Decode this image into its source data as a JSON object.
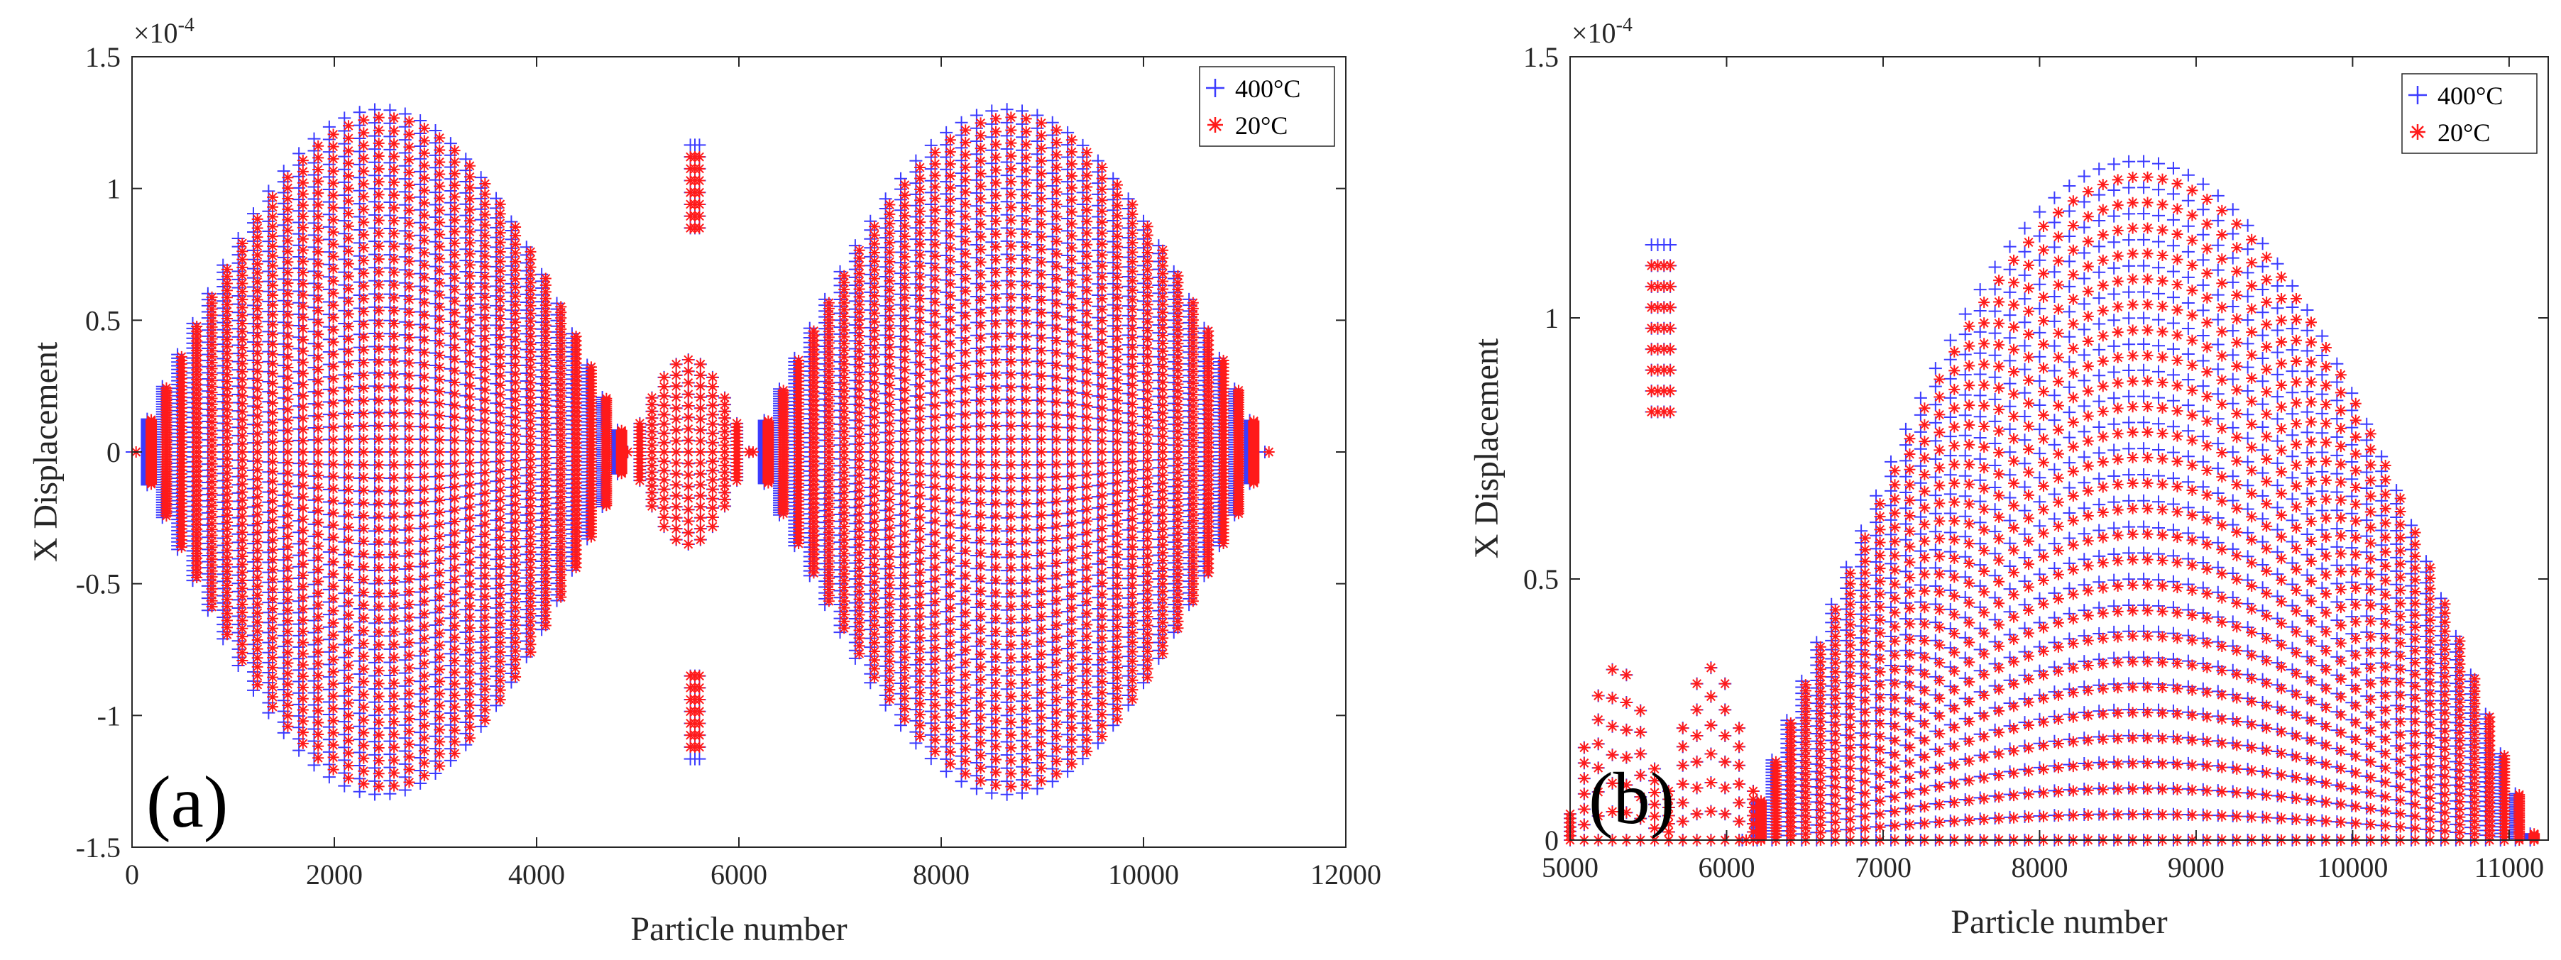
{
  "colors": {
    "series_400": "#3b3bff",
    "series_20": "#ff1a1a",
    "axis": "#262626"
  },
  "chart_data": [
    {
      "type": "scatter",
      "panel_label": "(a)",
      "xlabel": "Particle number",
      "ylabel": "X Displacement",
      "exponent_base": "×10",
      "exponent_power": "-4",
      "xlim": [
        0,
        12000
      ],
      "ylim": [
        -1.5,
        1.5
      ],
      "xticks": [
        0,
        2000,
        4000,
        6000,
        8000,
        10000,
        12000
      ],
      "yticks": [
        -1.5,
        -1,
        -0.5,
        0,
        0.5,
        1,
        1.5
      ],
      "xtick_labels": [
        "0",
        "2000",
        "4000",
        "6000",
        "8000",
        "10000",
        "12000"
      ],
      "ytick_labels": [
        "-1.5",
        "-1",
        "-0.5",
        "0",
        "0.5",
        "1",
        "1.5"
      ],
      "legend": [
        "400°C",
        "20°C"
      ],
      "legend_position": "top-right",
      "series": [
        {
          "name": "400°C",
          "marker": "+",
          "envelope_peak": 1.3,
          "lobes": [
            [
              0,
              4900
            ],
            [
              6100,
              11200
            ]
          ],
          "central_spike": [
            5520,
            5650,
            1.17
          ]
        },
        {
          "name": "20°C",
          "marker": "*",
          "envelope_peak": 1.27,
          "lobes": [
            [
              0,
              4900
            ],
            [
              6100,
              11200
            ]
          ],
          "central_spike": [
            5520,
            5650,
            1.13
          ]
        }
      ]
    },
    {
      "type": "scatter",
      "panel_label": "(b)",
      "xlabel": "Particle number",
      "ylabel": "X Displacement",
      "exponent_base": "×10",
      "exponent_power": "-4",
      "xlim": [
        5000,
        11250
      ],
      "ylim": [
        0,
        1.5
      ],
      "xticks": [
        5000,
        6000,
        7000,
        8000,
        9000,
        10000,
        11000
      ],
      "yticks": [
        0,
        0.5,
        1,
        1.5
      ],
      "xtick_labels": [
        "5000",
        "6000",
        "7000",
        "8000",
        "9000",
        "10000",
        "11000"
      ],
      "ytick_labels": [
        "0",
        "0.5",
        "1",
        "1.5"
      ],
      "legend": [
        "400°C",
        "20°C"
      ],
      "legend_position": "top-right",
      "series": [
        {
          "name": "400°C",
          "marker": "+",
          "envelope_peak": 1.3,
          "main_lobe": [
            6100,
            11150
          ],
          "central_spike": [
            5520,
            5650,
            1.17
          ]
        },
        {
          "name": "20°C",
          "marker": "*",
          "envelope_peak": 1.27,
          "main_lobe": [
            6100,
            11150
          ],
          "central_spike": [
            5520,
            5650,
            1.13
          ]
        }
      ]
    }
  ]
}
